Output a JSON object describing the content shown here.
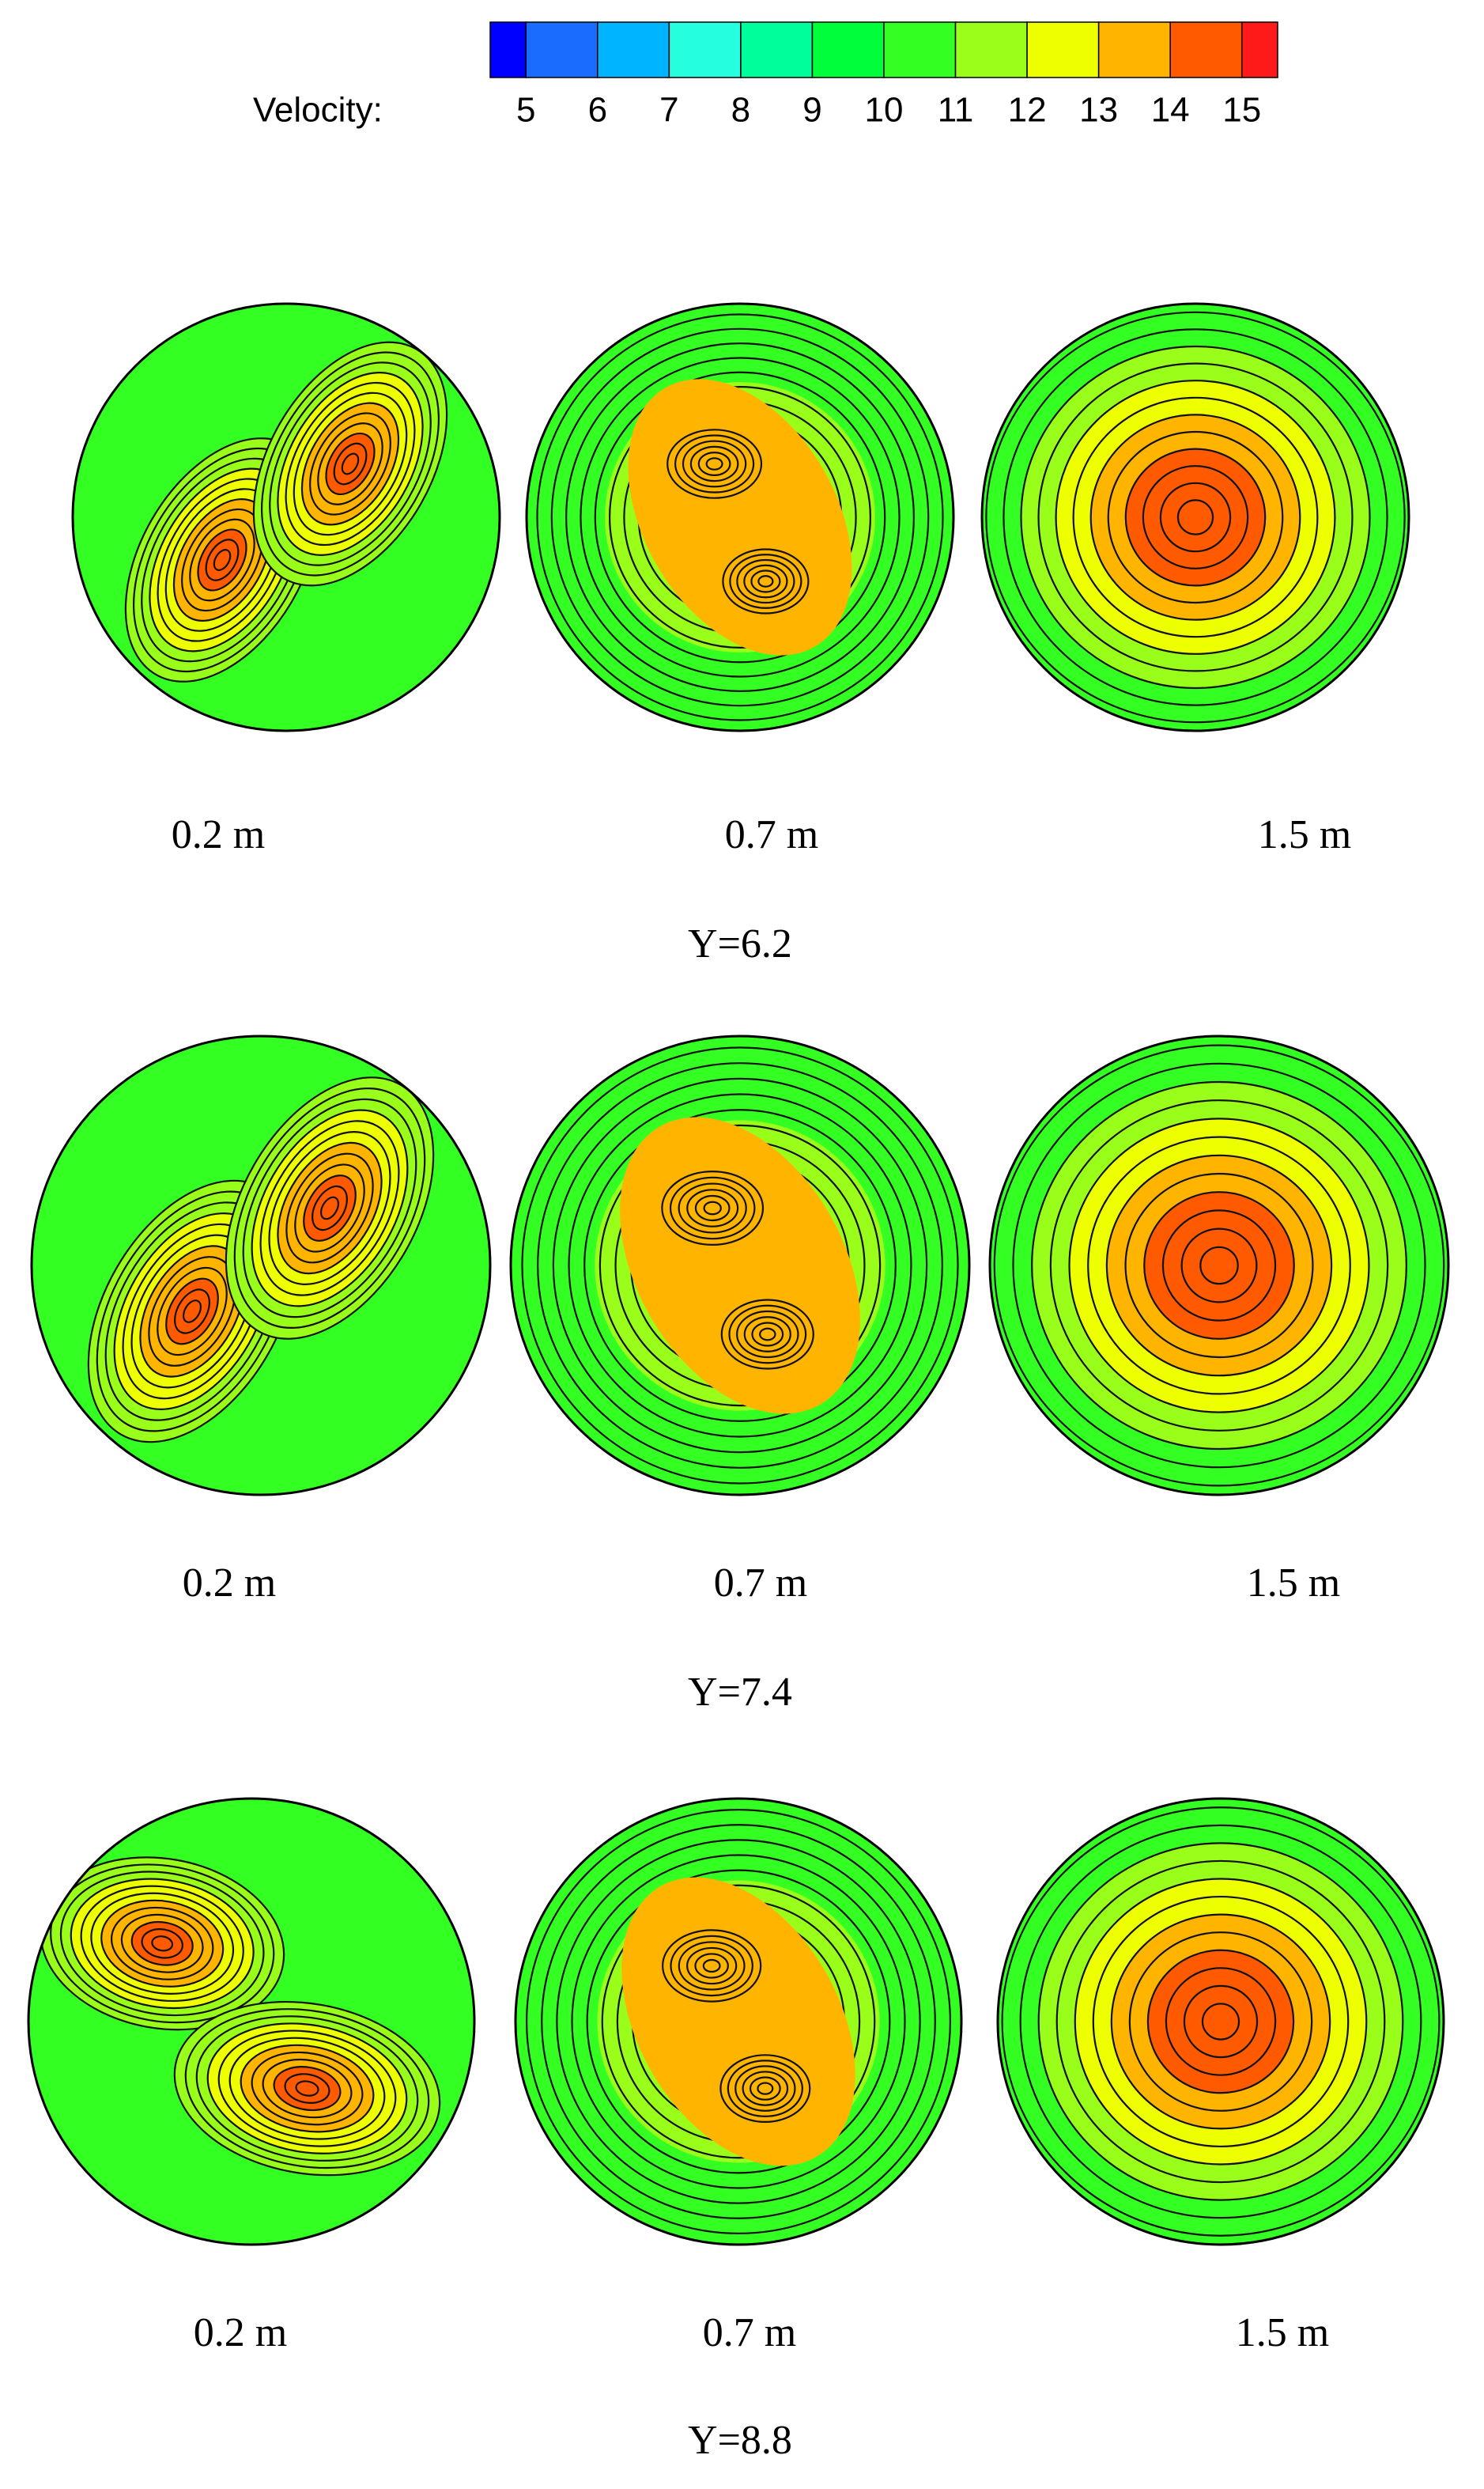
{
  "colorbar": {
    "label": "Velocity:",
    "ticks": [
      5,
      6,
      7,
      8,
      9,
      10,
      11,
      12,
      13,
      14,
      15
    ],
    "colors": [
      "#0000ff",
      "#1a6cff",
      "#00b4ff",
      "#26ffdf",
      "#00ff9a",
      "#00ff3a",
      "#33ff22",
      "#99ff1a",
      "#eeff00",
      "#ffb400",
      "#ff5a00",
      "#ff1a1a"
    ]
  },
  "rows": [
    {
      "title": "Y=6.2",
      "panels": [
        "0.2 m",
        "0.7 m",
        "1.5 m"
      ]
    },
    {
      "title": "Y=7.4",
      "panels": [
        "0.2 m",
        "0.7 m",
        "1.5 m"
      ]
    },
    {
      "title": "Y=8.8",
      "panels": [
        "0.2 m",
        "0.7 m",
        "1.5 m"
      ]
    }
  ]
}
